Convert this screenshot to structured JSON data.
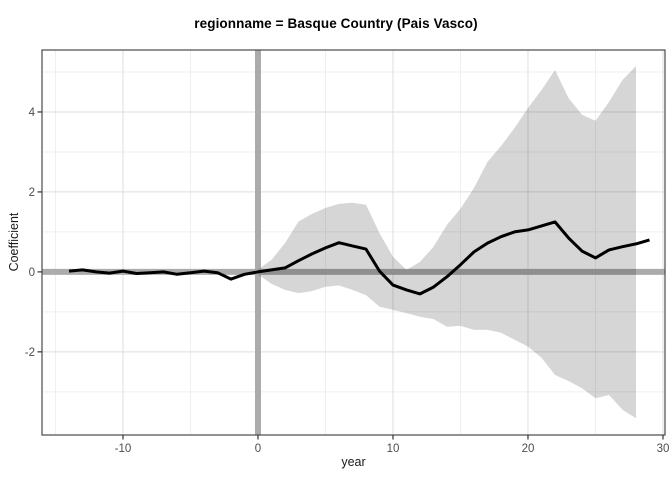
{
  "title": "regionname = Basque Country (Pais Vasco)",
  "chart_data": {
    "type": "line",
    "title": "regionname = Basque Country (Pais Vasco)",
    "xlabel": "year",
    "ylabel": "Coefficient",
    "xlim": [
      -16,
      30.15
    ],
    "ylim": [
      -4.08,
      5.55
    ],
    "x_ticks": [
      -10,
      0,
      10,
      20,
      30
    ],
    "y_ticks": [
      -2,
      0,
      2,
      4
    ],
    "x_minor_ticks": [
      -15,
      -5,
      5,
      15,
      25
    ],
    "y_minor_ticks": [
      -3,
      -1,
      1,
      3,
      5
    ],
    "grid": true,
    "legend_position": "none",
    "reference_lines": {
      "vertical_x": 0,
      "horizontal_y": 0
    },
    "series": [
      {
        "name": "coefficient",
        "x": [
          -14,
          -13,
          -12,
          -11,
          -10,
          -9,
          -8,
          -7,
          -6,
          -5,
          -4,
          -3,
          -2,
          -1,
          0,
          1,
          2,
          3,
          4,
          5,
          6,
          7,
          8,
          9,
          10,
          11,
          12,
          13,
          14,
          15,
          16,
          17,
          18,
          19,
          20,
          21,
          22,
          23,
          24,
          25,
          26,
          27,
          28,
          29
        ],
        "y": [
          0.02,
          0.05,
          0.0,
          -0.03,
          0.02,
          -0.04,
          -0.02,
          0.0,
          -0.06,
          -0.02,
          0.02,
          -0.02,
          -0.18,
          -0.06,
          0.0,
          0.05,
          0.1,
          0.28,
          0.45,
          0.6,
          0.73,
          0.65,
          0.57,
          0.02,
          -0.33,
          -0.45,
          -0.55,
          -0.38,
          -0.12,
          0.18,
          0.5,
          0.72,
          0.88,
          1.0,
          1.05,
          1.15,
          1.25,
          0.85,
          0.52,
          0.35,
          0.55,
          0.63,
          0.7,
          0.8
        ]
      }
    ],
    "ribbon": {
      "name": "confidence-band",
      "x": [
        0,
        1,
        2,
        3,
        4,
        5,
        6,
        7,
        8,
        9,
        10,
        11,
        12,
        13,
        14,
        15,
        16,
        17,
        18,
        19,
        20,
        21,
        22,
        23,
        24,
        25,
        26,
        27,
        28
      ],
      "upper": [
        0.06,
        0.3,
        0.72,
        1.26,
        1.45,
        1.6,
        1.7,
        1.73,
        1.68,
        0.97,
        0.38,
        0.05,
        0.25,
        0.63,
        1.18,
        1.58,
        2.1,
        2.75,
        3.15,
        3.6,
        4.1,
        4.55,
        5.05,
        4.35,
        3.93,
        3.78,
        4.25,
        4.8,
        5.15
      ],
      "lower": [
        -0.06,
        -0.3,
        -0.45,
        -0.53,
        -0.48,
        -0.37,
        -0.34,
        -0.45,
        -0.58,
        -0.87,
        -0.95,
        -1.03,
        -1.12,
        -1.18,
        -1.37,
        -1.35,
        -1.45,
        -1.45,
        -1.52,
        -1.7,
        -1.87,
        -2.15,
        -2.58,
        -2.73,
        -2.91,
        -3.16,
        -3.08,
        -3.45,
        -3.66
      ]
    },
    "colors": {
      "line": "#000000",
      "ribbon_fill": "rgba(0,0,0,0.16)",
      "reference_line": "#ababab",
      "grid_major": "#dedede",
      "grid_minor": "#efefef",
      "panel_border": "#4a4a4a",
      "tick_mark": "#333333",
      "tick_label": "#4d4d4d",
      "background": "#ffffff"
    }
  }
}
